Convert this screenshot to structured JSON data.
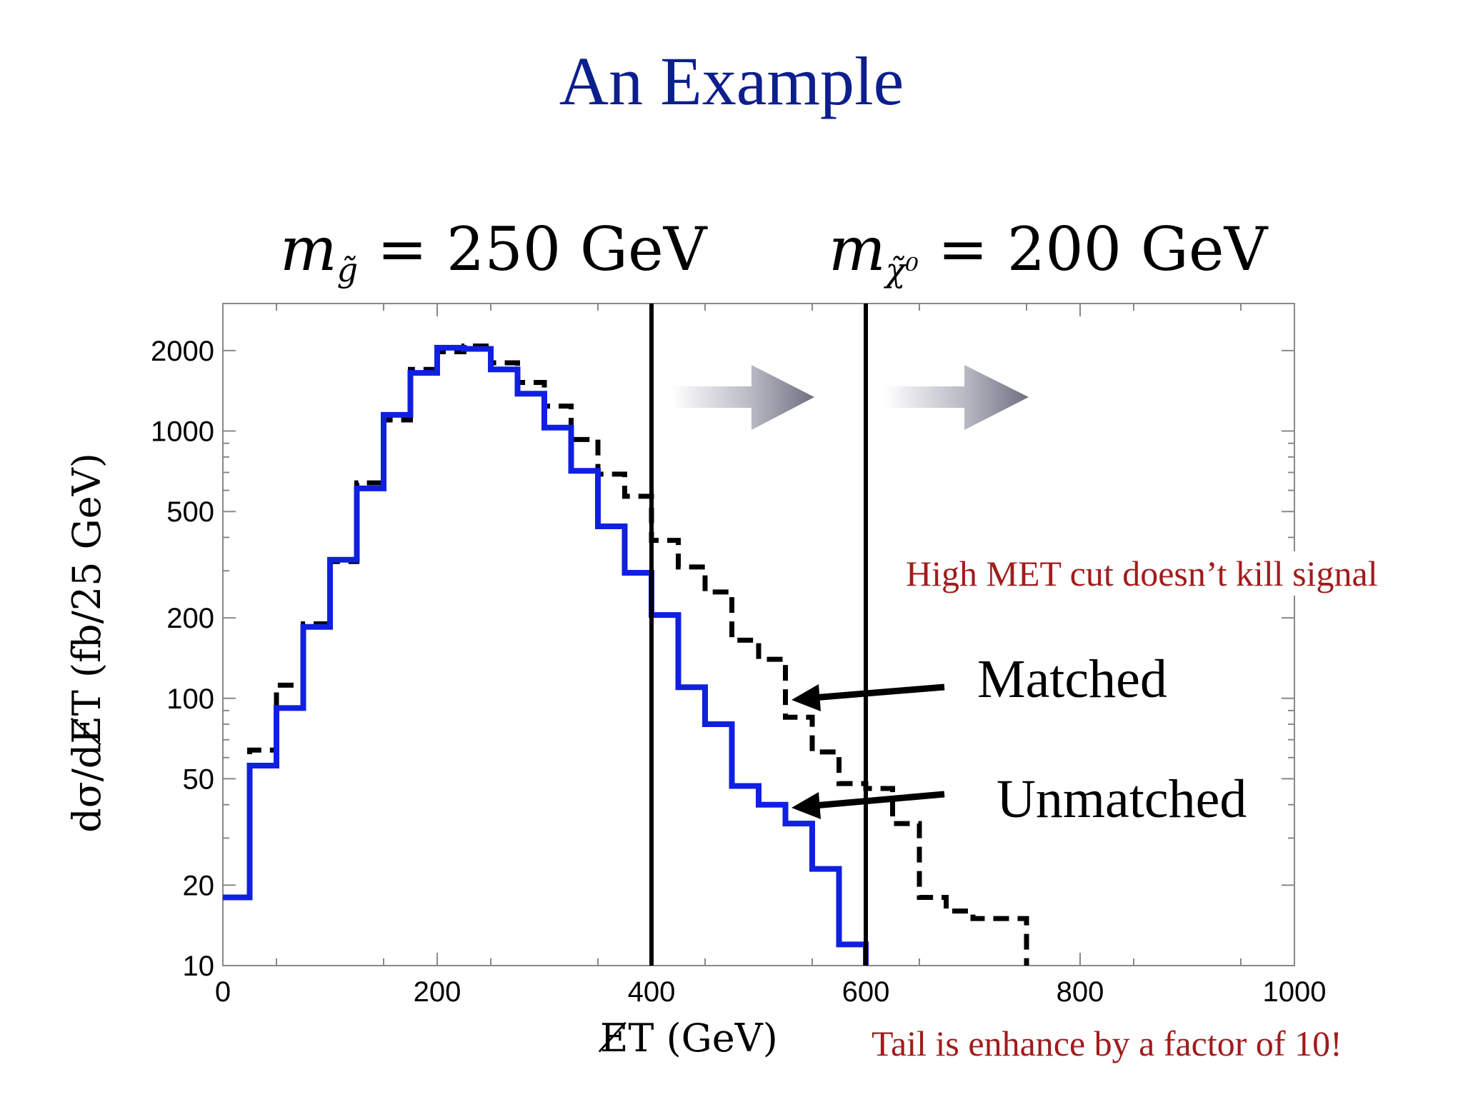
{
  "slide": {
    "title": "An Example",
    "mass_gluino": {
      "symbol": "m",
      "subscript": "g̃",
      "text": "= 250 GeV"
    },
    "mass_neutralino": {
      "symbol": "m",
      "subscript": "χ̃⁰",
      "text": "= 200 GeV"
    },
    "note_met": "High MET cut doesn’t kill signal",
    "note_tail": "Tail is enhance by a factor of 10!"
  },
  "colors": {
    "title": "#0d1f8c",
    "note": "#a01c1c",
    "unmatched": "#1020e0",
    "matched": "#000000",
    "arrow": "#6e7080"
  },
  "chart_data": {
    "type": "line",
    "step_histogram": true,
    "xlabel": "E̸T (GeV)",
    "ylabel": "dσ/dE̸T (fb/25 GeV)",
    "xlim": [
      0,
      1000
    ],
    "ylim": [
      10,
      3000
    ],
    "yscale": "log",
    "x_ticks": [
      "0",
      "200",
      "400",
      "600",
      "800",
      "1000"
    ],
    "y_ticks": [
      "10",
      "20",
      "50",
      "100",
      "200",
      "500",
      "1000",
      "2000"
    ],
    "bin_edges": [
      0,
      25,
      50,
      75,
      100,
      125,
      150,
      175,
      200,
      225,
      250,
      275,
      300,
      325,
      350,
      375,
      400,
      425,
      450,
      475,
      500,
      525,
      550,
      575,
      600,
      625,
      650,
      675,
      700,
      725,
      750,
      775
    ],
    "series": [
      {
        "name": "Unmatched",
        "style": "solid",
        "values": [
          18,
          56,
          92,
          185,
          330,
          610,
          1150,
          1650,
          2050,
          2030,
          1700,
          1380,
          1030,
          710,
          440,
          295,
          205,
          110,
          80,
          47,
          40,
          34,
          23,
          12
        ]
      },
      {
        "name": "Matched",
        "style": "dashed",
        "values": [
          18,
          64,
          112,
          190,
          325,
          640,
          1100,
          1700,
          1980,
          2080,
          1800,
          1520,
          1240,
          930,
          690,
          570,
          390,
          310,
          250,
          165,
          140,
          85,
          63,
          48,
          46,
          34,
          18,
          16,
          15,
          15
        ]
      }
    ],
    "cut_lines": [
      400,
      600
    ],
    "curve_labels": {
      "matched": "Matched",
      "unmatched": "Unmatched"
    }
  }
}
